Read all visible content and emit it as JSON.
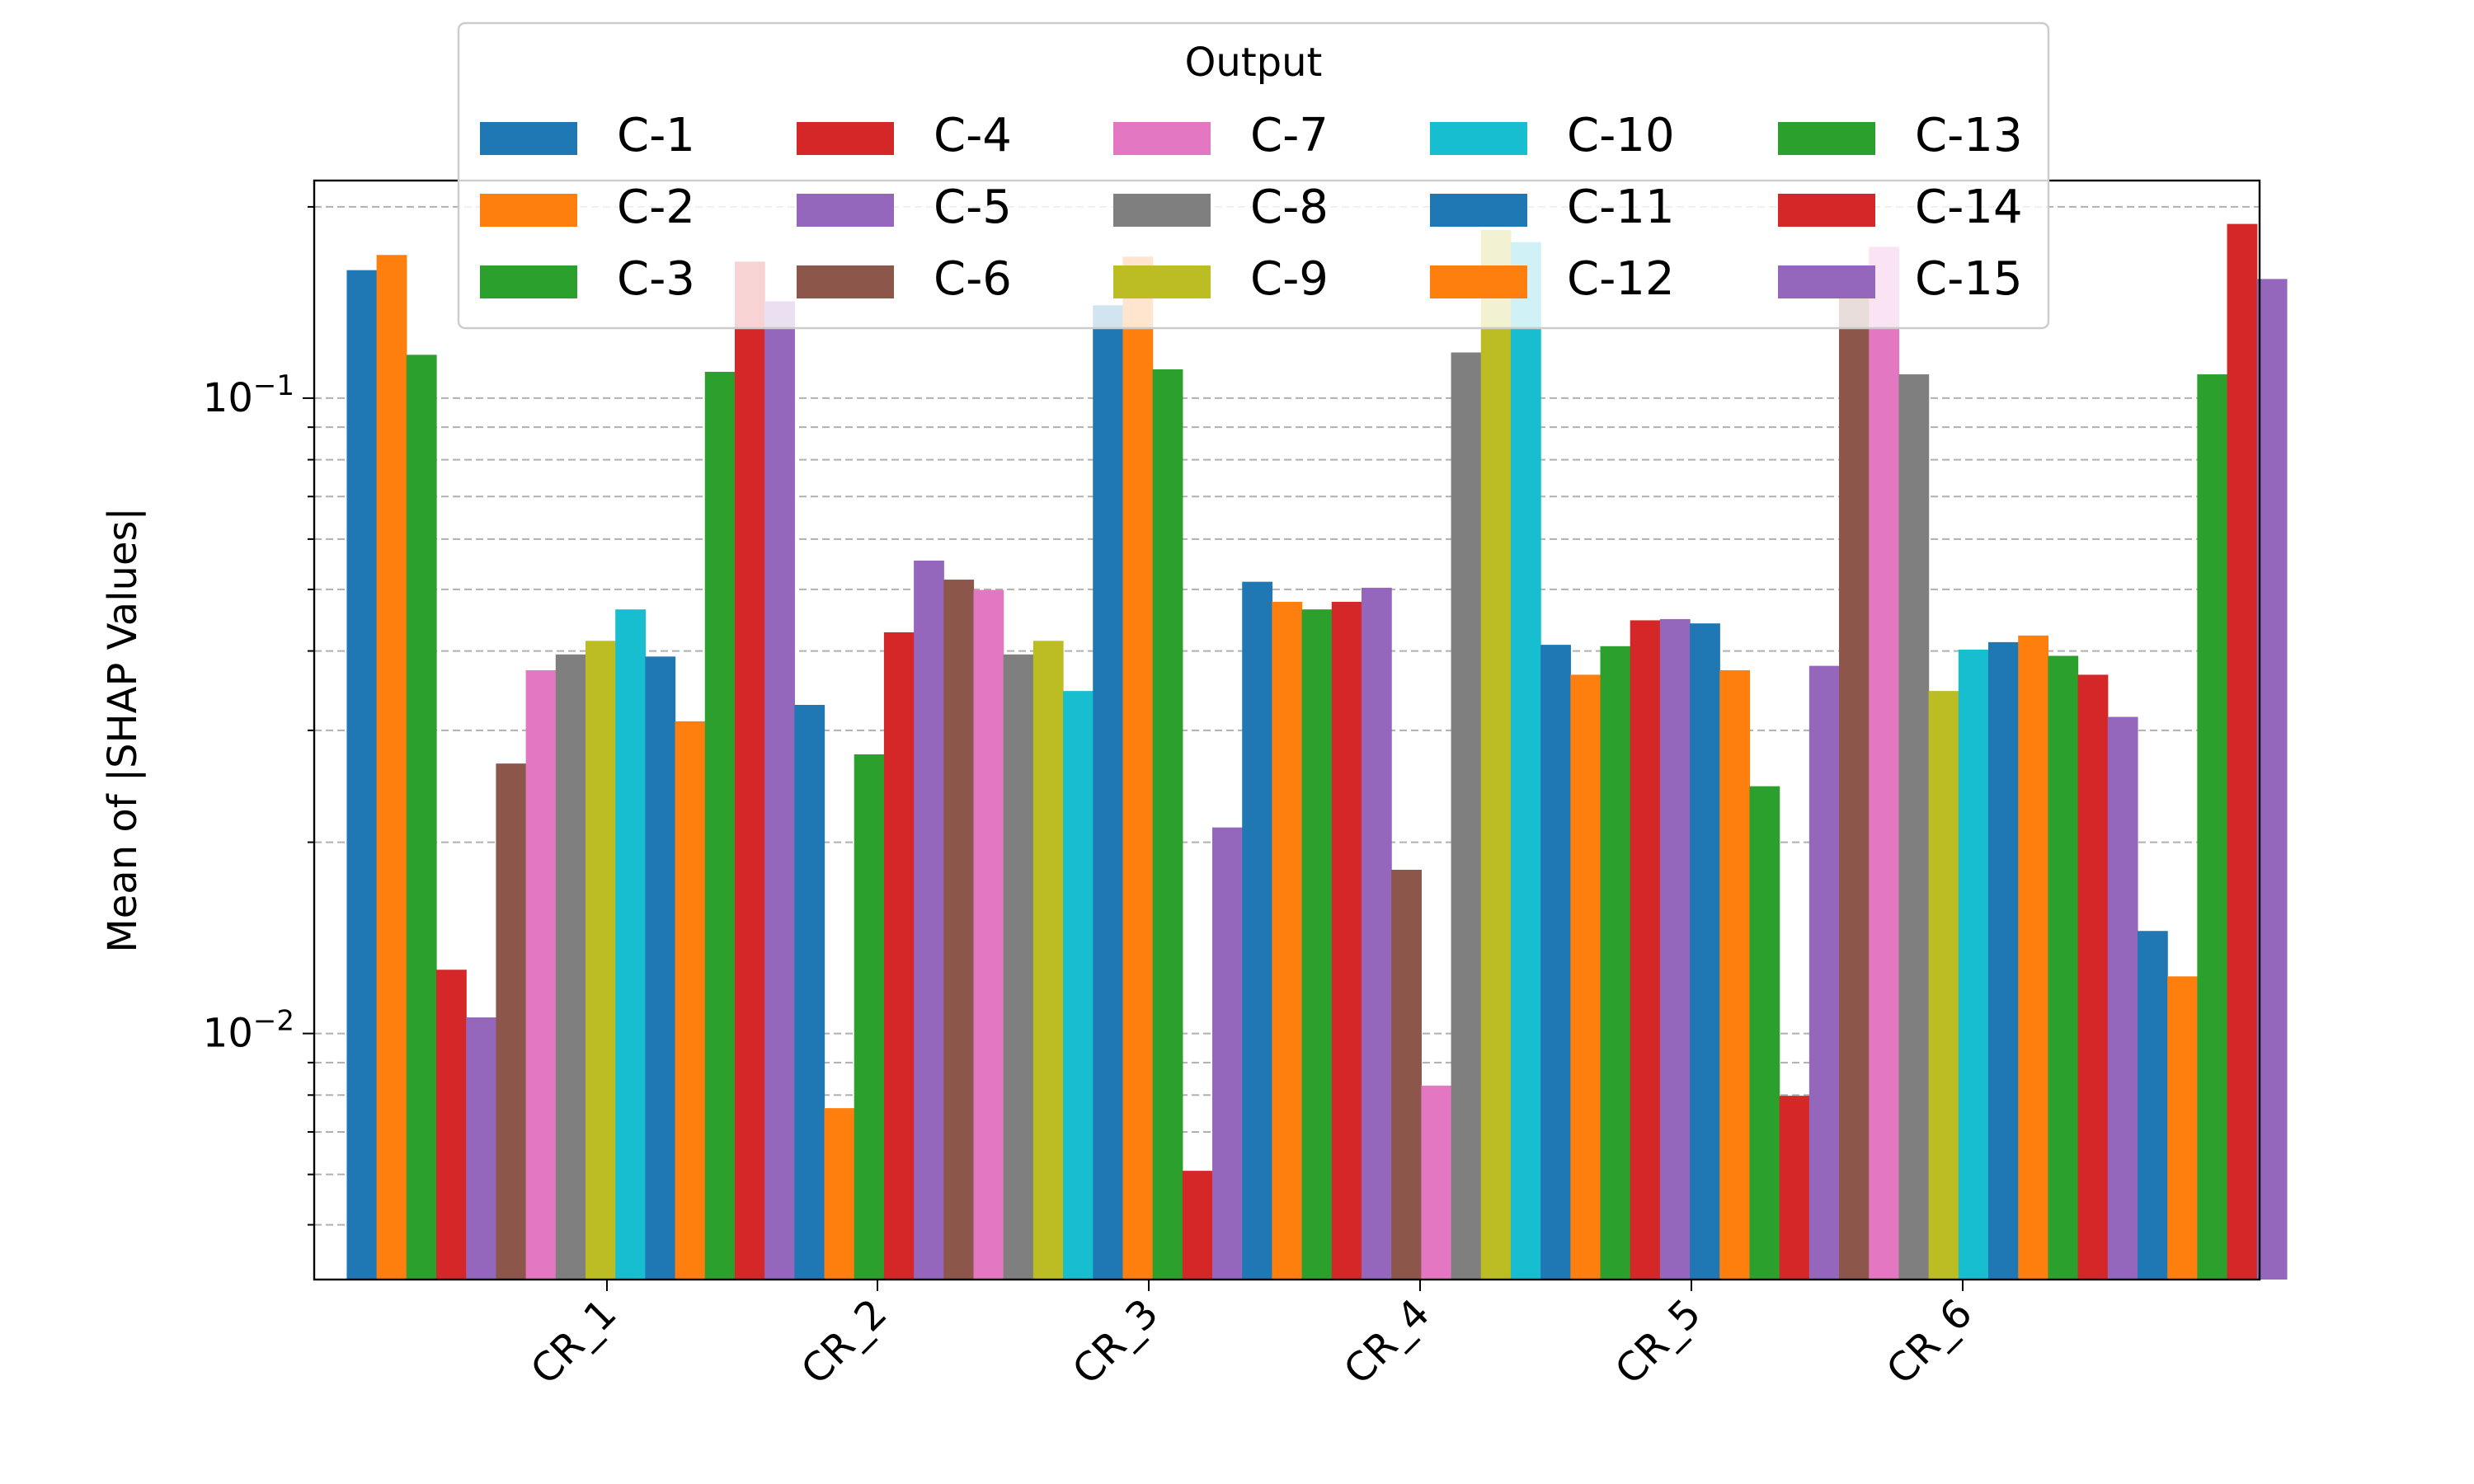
{
  "chart_data": {
    "type": "bar",
    "title": "",
    "xlabel": "",
    "ylabel": "Mean of |SHAP Values|",
    "yscale": "log",
    "ylim": [
      0.0041,
      0.22
    ],
    "yticks": [
      {
        "value": 0.1,
        "base": "10",
        "exp": "−1"
      },
      {
        "value": 0.01,
        "base": "10",
        "exp": "−2"
      }
    ],
    "grid": "y-major-and-minor-dashed",
    "categories": [
      "CR_1",
      "CR_2",
      "CR_3",
      "CR_4",
      "CR_5",
      "CR_6"
    ],
    "legend": {
      "title": "Output",
      "placement": "upper center",
      "ncol": 5
    },
    "series_sequence": [
      "C-1",
      "C-2",
      "C-3",
      "C-4",
      "C-5",
      "C-6",
      "C-7",
      "C-8",
      "C-9",
      "C-10",
      "C-11",
      "C-12",
      "C-13",
      "C-14",
      "C-15"
    ],
    "series_colors": [
      "#1f77b4",
      "#ff7f0e",
      "#2ca02c",
      "#d62728",
      "#9467bd",
      "#8c564b",
      "#e377c2",
      "#7f7f7f",
      "#bcbd22",
      "#17becf",
      "#1f77b4",
      "#ff7f0e",
      "#2ca02c",
      "#d62728",
      "#9467bd"
    ],
    "bars": [
      0.159,
      0.168,
      0.117,
      0.0126,
      0.0106,
      0.0266,
      0.0373,
      0.0395,
      0.0415,
      0.0465,
      0.0392,
      0.031,
      0.11,
      0.164,
      0.142,
      0.0329,
      0.00763,
      0.0275,
      0.0428,
      0.0555,
      0.0518,
      0.0499,
      0.0395,
      0.0415,
      0.0346,
      0.14,
      0.167,
      0.111,
      0.00608,
      0.0211,
      0.0514,
      0.0478,
      0.0465,
      0.0478,
      0.0503,
      0.0181,
      0.00828,
      0.118,
      0.184,
      0.176,
      0.0409,
      0.0367,
      0.0407,
      0.0447,
      0.0449,
      0.0442,
      0.0373,
      0.0245,
      0.00798,
      0.0379,
      0.158,
      0.173,
      0.109,
      0.0346,
      0.0402,
      0.0413,
      0.0423,
      0.0393,
      0.0367,
      0.0315,
      0.0145,
      0.0123,
      0.109,
      0.188,
      0.154
    ]
  }
}
